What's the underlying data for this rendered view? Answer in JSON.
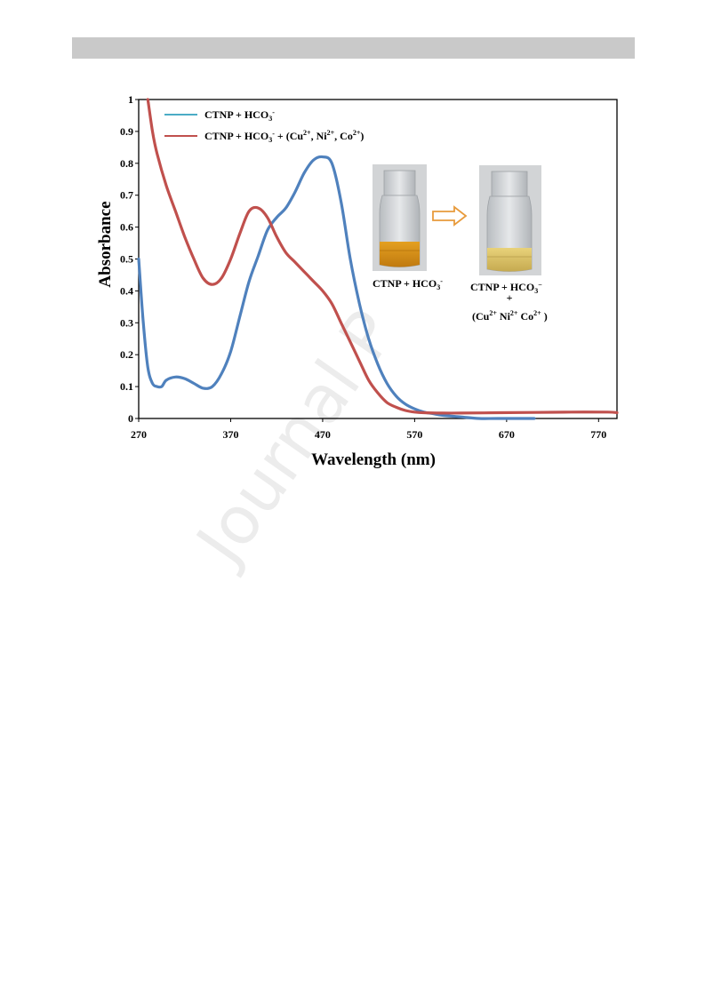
{
  "chart_data": {
    "type": "line",
    "title": "",
    "xlabel": "Wavelength (nm)",
    "ylabel": "Absorbance",
    "xlim": [
      270,
      790
    ],
    "ylim": [
      0,
      1
    ],
    "xticks": [
      "270",
      "370",
      "470",
      "570",
      "670",
      "770"
    ],
    "yticks": [
      "0",
      "0.1",
      "0.2",
      "0.3",
      "0.4",
      "0.5",
      "0.6",
      "0.7",
      "0.8",
      "0.9",
      "1"
    ],
    "legend_position": "top-left",
    "series": [
      {
        "name": "CTNP + HCO3-",
        "color": "#4f81bd",
        "x": [
          270,
          275,
          280,
          285,
          290,
          295,
          300,
          310,
          320,
          330,
          340,
          350,
          360,
          370,
          380,
          390,
          400,
          410,
          420,
          430,
          440,
          450,
          460,
          470,
          480,
          490,
          500,
          510,
          520,
          530,
          540,
          550,
          560,
          570,
          580,
          590,
          600,
          620,
          640,
          660,
          700
        ],
        "values": [
          0.5,
          0.3,
          0.16,
          0.11,
          0.1,
          0.1,
          0.12,
          0.13,
          0.125,
          0.11,
          0.095,
          0.1,
          0.14,
          0.21,
          0.32,
          0.43,
          0.51,
          0.59,
          0.63,
          0.66,
          0.71,
          0.77,
          0.81,
          0.82,
          0.8,
          0.68,
          0.5,
          0.36,
          0.25,
          0.17,
          0.11,
          0.07,
          0.045,
          0.03,
          0.02,
          0.015,
          0.01,
          0.005,
          0.0,
          0.0,
          0.0
        ]
      },
      {
        "name": "CTNP + HCO3- + (Cu2+, Ni2+, Co2+)",
        "color": "#c0504d",
        "x": [
          280,
          285,
          290,
          300,
          310,
          320,
          330,
          340,
          350,
          360,
          370,
          380,
          390,
          400,
          410,
          420,
          430,
          440,
          450,
          460,
          470,
          480,
          490,
          500,
          510,
          520,
          530,
          540,
          550,
          560,
          570,
          580,
          600,
          620,
          660,
          700,
          740,
          780,
          790
        ],
        "values": [
          1.0,
          0.9,
          0.83,
          0.73,
          0.65,
          0.57,
          0.5,
          0.44,
          0.42,
          0.44,
          0.5,
          0.58,
          0.65,
          0.66,
          0.63,
          0.57,
          0.52,
          0.49,
          0.46,
          0.43,
          0.4,
          0.36,
          0.3,
          0.24,
          0.18,
          0.12,
          0.08,
          0.05,
          0.035,
          0.025,
          0.02,
          0.018,
          0.017,
          0.017,
          0.018,
          0.019,
          0.02,
          0.02,
          0.018
        ]
      }
    ],
    "legend": [
      {
        "base": "CTNP + HCO",
        "sub": "3",
        "sup": "-",
        "rest": ""
      },
      {
        "base": "CTNP + HCO",
        "sub": "3",
        "sup": "-",
        "rest": " + (Cu",
        "parts": [
          "2+",
          ", Ni",
          "2+",
          ", Co",
          "2+",
          ")"
        ]
      }
    ]
  },
  "inset": {
    "left_caption": "CTNP + HCO3-",
    "right_caption_line1": "CTNP + HCO3−",
    "right_caption_plus": "+",
    "right_caption_line2": "(Cu2+  Ni2+ Co2+ )"
  },
  "page": {
    "watermark": "Journal P"
  }
}
